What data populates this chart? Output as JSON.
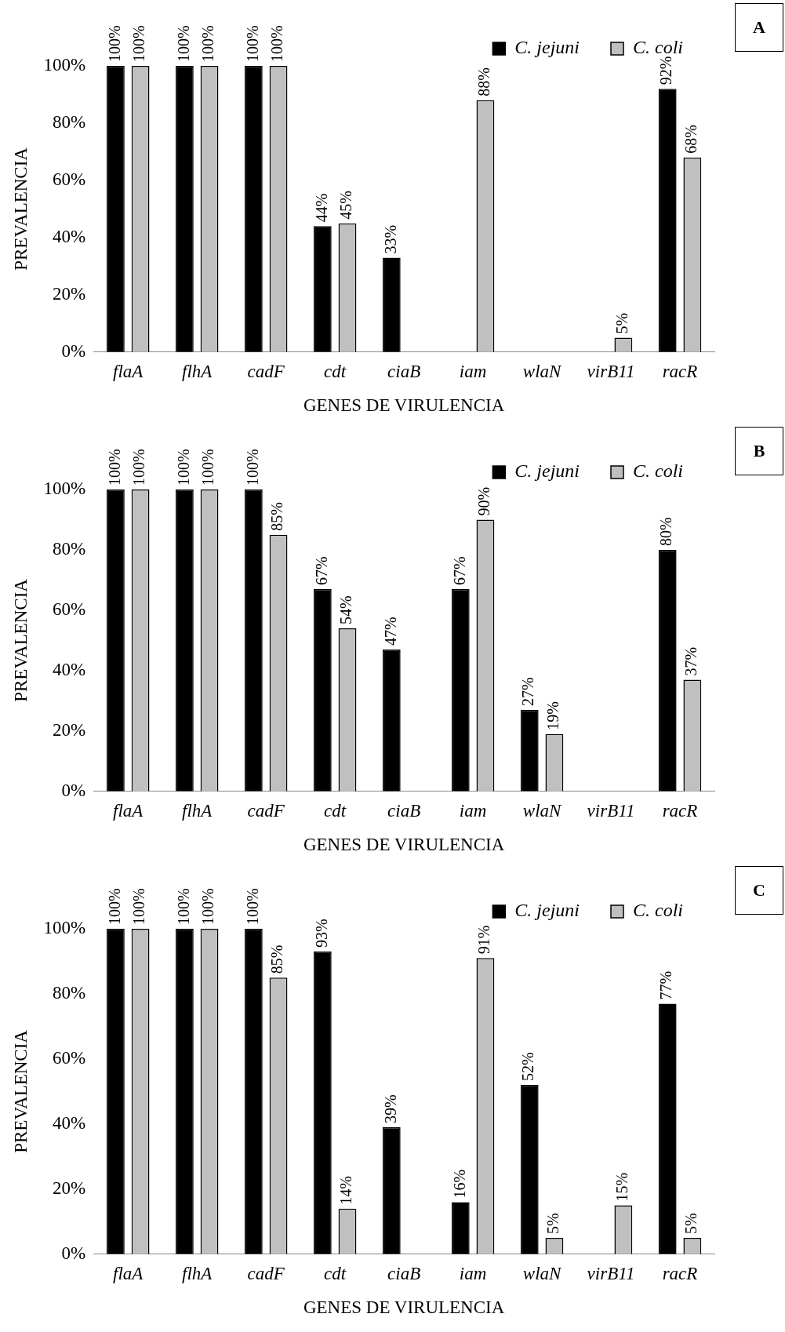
{
  "chart_data": [
    {
      "type": "bar",
      "annotations": [
        "A"
      ],
      "xlabel": "GENES DE VIRULENCIA",
      "ylabel": "PREVALENCIA",
      "categories": [
        "flaA",
        "flhA",
        "cadF",
        "cdt",
        "ciaB",
        "iam",
        "wlaN",
        "virB11",
        "racR"
      ],
      "ylim": [
        0,
        100
      ],
      "yticks": [
        {
          "value": 0,
          "label": "0%"
        },
        {
          "value": 20,
          "label": "20%"
        },
        {
          "value": 40,
          "label": "40%"
        },
        {
          "value": 60,
          "label": "60%"
        },
        {
          "value": 80,
          "label": "80%"
        },
        {
          "value": 100,
          "label": "100%"
        }
      ],
      "grid": false,
      "legend": "top right",
      "series": [
        {
          "name": "C. jejuni",
          "color": "#000000",
          "values": [
            100,
            100,
            100,
            44,
            33,
            0,
            0,
            0,
            92
          ],
          "value_labels": [
            "100%",
            "100%",
            "100%",
            "44%",
            "33%",
            null,
            null,
            null,
            "92%"
          ]
        },
        {
          "name": "C. coli",
          "color": "#c0c0c0",
          "values": [
            100,
            100,
            100,
            45,
            0,
            88,
            0,
            5,
            68
          ],
          "value_labels": [
            "100%",
            "100%",
            "100%",
            "45%",
            null,
            "88%",
            null,
            "5%",
            "68%"
          ]
        }
      ]
    },
    {
      "type": "bar",
      "annotations": [
        "B"
      ],
      "xlabel": "GENES DE VIRULENCIA",
      "ylabel": "PREVALENCIA",
      "categories": [
        "flaA",
        "flhA",
        "cadF",
        "cdt",
        "ciaB",
        "iam",
        "wlaN",
        "virB11",
        "racR"
      ],
      "ylim": [
        0,
        100
      ],
      "yticks": [
        {
          "value": 0,
          "label": "0%"
        },
        {
          "value": 20,
          "label": "20%"
        },
        {
          "value": 40,
          "label": "40%"
        },
        {
          "value": 60,
          "label": "60%"
        },
        {
          "value": 80,
          "label": "80%"
        },
        {
          "value": 100,
          "label": "100%"
        }
      ],
      "grid": false,
      "legend": "top right",
      "series": [
        {
          "name": "C. jejuni",
          "color": "#000000",
          "values": [
            100,
            100,
            100,
            67,
            47,
            67,
            27,
            0,
            80
          ],
          "value_labels": [
            "100%",
            "100%",
            "100%",
            "67%",
            "47%",
            "67%",
            "27%",
            null,
            "80%"
          ]
        },
        {
          "name": "C. coli",
          "color": "#c0c0c0",
          "values": [
            100,
            100,
            85,
            54,
            0,
            90,
            19,
            0,
            37
          ],
          "value_labels": [
            "100%",
            "100%",
            "85%",
            "54%",
            null,
            "90%",
            "19%",
            null,
            "37%"
          ]
        }
      ]
    },
    {
      "type": "bar",
      "annotations": [
        "C"
      ],
      "xlabel": "GENES DE VIRULENCIA",
      "ylabel": "PREVALENCIA",
      "categories": [
        "flaA",
        "flhA",
        "cadF",
        "cdt",
        "ciaB",
        "iam",
        "wlaN",
        "virB11",
        "racR"
      ],
      "ylim": [
        0,
        100
      ],
      "yticks": [
        {
          "value": 0,
          "label": "0%"
        },
        {
          "value": 20,
          "label": "20%"
        },
        {
          "value": 40,
          "label": "40%"
        },
        {
          "value": 60,
          "label": "60%"
        },
        {
          "value": 80,
          "label": "80%"
        },
        {
          "value": 100,
          "label": "100%"
        }
      ],
      "grid": false,
      "legend": "top right",
      "series": [
        {
          "name": "C. jejuni",
          "color": "#000000",
          "values": [
            100,
            100,
            100,
            93,
            39,
            16,
            52,
            0,
            77
          ],
          "value_labels": [
            "100%",
            "100%",
            "100%",
            "93%",
            "39%",
            "16%",
            "52%",
            null,
            "77%"
          ]
        },
        {
          "name": "C. coli",
          "color": "#c0c0c0",
          "values": [
            100,
            100,
            85,
            14,
            0,
            91,
            5,
            15,
            5
          ],
          "value_labels": [
            "100%",
            "100%",
            "85%",
            "14%",
            null,
            "91%",
            "5%",
            "15%",
            "5%"
          ]
        }
      ]
    }
  ]
}
